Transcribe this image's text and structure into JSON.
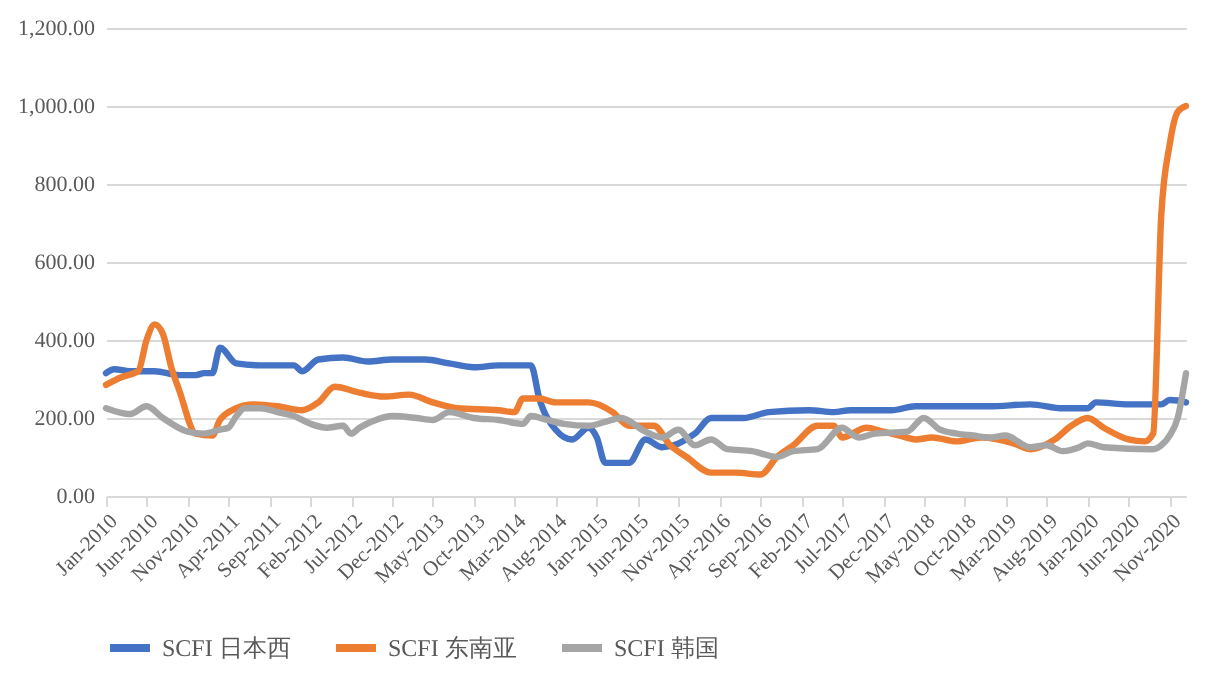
{
  "chart_data": {
    "type": "line",
    "grid": "y",
    "legend": "bottom",
    "marker": "none",
    "line_style": "solid",
    "ylim": [
      0,
      1200
    ],
    "yticks": [
      {
        "value": 0,
        "label": "0.00"
      },
      {
        "value": 200,
        "label": "200.00"
      },
      {
        "value": 400,
        "label": "400.00"
      },
      {
        "value": 600,
        "label": "600.00"
      },
      {
        "value": 800,
        "label": "800.00"
      },
      {
        "value": 1000,
        "label": "1,000.00"
      },
      {
        "value": 1200,
        "label": "1,200.00"
      }
    ],
    "xlim": [
      "2010-01",
      "2021-01"
    ],
    "xticks": [
      {
        "value": "2010-01",
        "label": "Jan-2010"
      },
      {
        "value": "2010-06",
        "label": "Jun-2010"
      },
      {
        "value": "2010-11",
        "label": "Nov-2010"
      },
      {
        "value": "2011-04",
        "label": "Apr-2011"
      },
      {
        "value": "2011-09",
        "label": "Sep-2011"
      },
      {
        "value": "2012-02",
        "label": "Feb-2012"
      },
      {
        "value": "2012-07",
        "label": "Jul-2012"
      },
      {
        "value": "2012-12",
        "label": "Dec-2012"
      },
      {
        "value": "2013-05",
        "label": "May-2013"
      },
      {
        "value": "2013-10",
        "label": "Oct-2013"
      },
      {
        "value": "2014-03",
        "label": "Mar-2014"
      },
      {
        "value": "2014-08",
        "label": "Aug-2014"
      },
      {
        "value": "2015-01",
        "label": "Jan-2015"
      },
      {
        "value": "2015-06",
        "label": "Jun-2015"
      },
      {
        "value": "2015-11",
        "label": "Nov-2015"
      },
      {
        "value": "2016-04",
        "label": "Apr-2016"
      },
      {
        "value": "2016-09",
        "label": "Sep-2016"
      },
      {
        "value": "2017-02",
        "label": "Feb-2017"
      },
      {
        "value": "2017-07",
        "label": "Jul-2017"
      },
      {
        "value": "2017-12",
        "label": "Dec-2017"
      },
      {
        "value": "2018-05",
        "label": "May-2018"
      },
      {
        "value": "2018-10",
        "label": "Oct-2018"
      },
      {
        "value": "2019-03",
        "label": "Mar-2019"
      },
      {
        "value": "2019-08",
        "label": "Aug-2019"
      },
      {
        "value": "2020-01",
        "label": "Jan-2020"
      },
      {
        "value": "2020-06",
        "label": "Jun-2020"
      },
      {
        "value": "2020-11",
        "label": "Nov-2020"
      }
    ],
    "series": [
      {
        "name": "SCFI 日本西",
        "color": "#4472c4",
        "x": [
          "2010-01",
          "2010-02",
          "2010-04",
          "2010-07",
          "2010-10",
          "2010-12",
          "2011-01",
          "2011-02",
          "2011-03",
          "2011-05",
          "2011-08",
          "2011-12",
          "2012-01",
          "2012-03",
          "2012-06",
          "2012-09",
          "2012-12",
          "2013-04",
          "2013-07",
          "2013-10",
          "2014-01",
          "2014-05",
          "2014-06",
          "2014-08",
          "2014-10",
          "2014-12",
          "2015-01",
          "2015-02",
          "2015-05",
          "2015-07",
          "2015-09",
          "2016-01",
          "2016-03",
          "2016-07",
          "2016-10",
          "2017-03",
          "2017-06",
          "2017-08",
          "2018-01",
          "2018-04",
          "2018-08",
          "2019-01",
          "2019-06",
          "2019-10",
          "2020-01",
          "2020-02",
          "2020-06",
          "2020-10",
          "2020-11",
          "2020-12",
          "2021-01"
        ],
        "values": [
          315,
          325,
          320,
          320,
          310,
          310,
          315,
          315,
          380,
          340,
          335,
          335,
          320,
          350,
          355,
          345,
          350,
          350,
          340,
          330,
          335,
          335,
          250,
          170,
          145,
          175,
          150,
          85,
          85,
          145,
          125,
          160,
          200,
          200,
          215,
          220,
          215,
          220,
          220,
          230,
          230,
          230,
          235,
          225,
          225,
          240,
          235,
          235,
          246,
          245,
          240
        ]
      },
      {
        "name": "SCFI 东南亚",
        "color": "#ed7d31",
        "x": [
          "2010-01",
          "2010-03",
          "2010-05",
          "2010-06",
          "2010-07",
          "2010-08",
          "2010-09",
          "2010-10",
          "2010-12",
          "2011-02",
          "2011-03",
          "2011-05",
          "2011-07",
          "2011-10",
          "2012-01",
          "2012-03",
          "2012-05",
          "2012-08",
          "2012-11",
          "2013-02",
          "2013-05",
          "2013-08",
          "2014-01",
          "2014-03",
          "2014-04",
          "2014-06",
          "2014-08",
          "2014-12",
          "2015-03",
          "2015-05",
          "2015-08",
          "2015-10",
          "2015-12",
          "2016-03",
          "2016-06",
          "2016-09",
          "2016-11",
          "2017-01",
          "2017-04",
          "2017-06",
          "2017-07",
          "2017-10",
          "2017-12",
          "2018-02",
          "2018-04",
          "2018-06",
          "2018-09",
          "2018-12",
          "2019-04",
          "2019-06",
          "2019-09",
          "2019-11",
          "2020-01",
          "2020-03",
          "2020-06",
          "2020-08",
          "2020-09",
          "2020-10",
          "2020-11",
          "2020-12",
          "2021-01"
        ],
        "values": [
          285,
          305,
          320,
          400,
          440,
          415,
          330,
          270,
          160,
          155,
          195,
          225,
          235,
          230,
          220,
          240,
          280,
          265,
          255,
          260,
          240,
          225,
          220,
          215,
          250,
          250,
          240,
          240,
          215,
          180,
          180,
          130,
          100,
          60,
          60,
          55,
          100,
          130,
          180,
          180,
          150,
          175,
          165,
          155,
          145,
          150,
          140,
          150,
          135,
          120,
          145,
          180,
          200,
          175,
          145,
          140,
          160,
          720,
          900,
          985,
          1000
        ]
      },
      {
        "name": "SCFI 韩国",
        "color": "#a5a5a5",
        "x": [
          "2010-01",
          "2010-04",
          "2010-06",
          "2010-08",
          "2010-11",
          "2011-01",
          "2011-03",
          "2011-04",
          "2011-05",
          "2011-06",
          "2011-08",
          "2011-10",
          "2011-12",
          "2012-02",
          "2012-04",
          "2012-06",
          "2012-07",
          "2012-08",
          "2012-10",
          "2012-12",
          "2013-03",
          "2013-05",
          "2013-07",
          "2013-10",
          "2014-01",
          "2014-04",
          "2014-05",
          "2014-07",
          "2014-09",
          "2014-12",
          "2015-02",
          "2015-04",
          "2015-07",
          "2015-09",
          "2015-11",
          "2016-01",
          "2016-03",
          "2016-05",
          "2016-08",
          "2016-11",
          "2017-01",
          "2017-04",
          "2017-07",
          "2017-09",
          "2017-11",
          "2018-03",
          "2018-05",
          "2018-07",
          "2018-09",
          "2018-11",
          "2019-01",
          "2019-03",
          "2019-06",
          "2019-08",
          "2019-10",
          "2019-12",
          "2020-01",
          "2020-03",
          "2020-09",
          "2020-10",
          "2020-11",
          "2020-12",
          "2021-01"
        ],
        "values": [
          225,
          210,
          230,
          200,
          165,
          160,
          170,
          175,
          205,
          225,
          225,
          215,
          205,
          185,
          175,
          180,
          160,
          175,
          195,
          205,
          200,
          195,
          215,
          200,
          195,
          185,
          205,
          195,
          185,
          180,
          190,
          200,
          165,
          150,
          170,
          130,
          145,
          120,
          115,
          100,
          115,
          120,
          175,
          150,
          160,
          165,
          200,
          170,
          160,
          155,
          150,
          155,
          125,
          130,
          115,
          125,
          135,
          125,
          120,
          130,
          155,
          200,
          315
        ]
      }
    ]
  }
}
